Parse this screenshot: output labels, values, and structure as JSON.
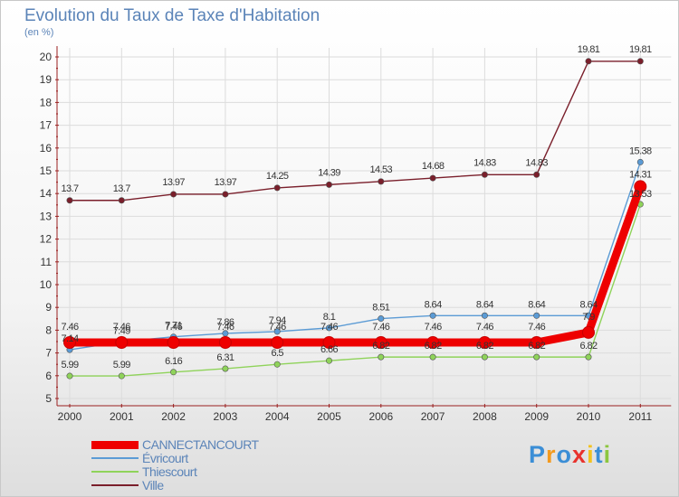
{
  "chart_data": {
    "type": "line",
    "title": "Evolution du Taux de Taxe d'Habitation",
    "ylabel": "(en %)",
    "xlabel": "",
    "x": [
      "2000",
      "2001",
      "2002",
      "2003",
      "2004",
      "2005",
      "2006",
      "2007",
      "2008",
      "2009",
      "2010",
      "2011"
    ],
    "ylim": [
      5,
      20
    ],
    "yticks": [
      "5",
      "6",
      "7",
      "8",
      "9",
      "10",
      "11",
      "12",
      "13",
      "14",
      "15",
      "16",
      "17",
      "18",
      "19",
      "20"
    ],
    "grid": true,
    "legend_position": "bottom-left",
    "series": [
      {
        "name": "CANNECTANCOURT",
        "color": "#ee0000",
        "values": [
          7.46,
          7.46,
          7.46,
          7.46,
          7.46,
          7.46,
          7.46,
          7.46,
          7.46,
          7.46,
          7.9,
          14.31
        ],
        "labels": [
          "7.46",
          "7.46",
          "7.46",
          "7.46",
          "7.46",
          "7.46",
          "7.46",
          "7.46",
          "7.46",
          "7.46",
          "7.9",
          "14.31"
        ]
      },
      {
        "name": "Évricourt",
        "color": "#5b9bd5",
        "values": [
          7.14,
          7.49,
          7.71,
          7.86,
          7.94,
          8.1,
          8.51,
          8.64,
          8.64,
          8.64,
          8.64,
          15.38
        ],
        "labels": [
          "7.14",
          "7.49",
          "7.71",
          "7.86",
          "7.94",
          "8.1",
          "8.51",
          "8.64",
          "8.64",
          "8.64",
          "8.64",
          "15.38"
        ]
      },
      {
        "name": "Thiescourt",
        "color": "#8fd35a",
        "values": [
          5.99,
          5.99,
          6.16,
          6.31,
          6.5,
          6.66,
          6.82,
          6.82,
          6.82,
          6.82,
          6.82,
          13.53
        ],
        "labels": [
          "5.99",
          "5.99",
          "6.16",
          "6.31",
          "6.5",
          "6.66",
          "6.82",
          "6.82",
          "6.82",
          "6.82",
          "6.82",
          "13.53"
        ]
      },
      {
        "name": "Ville",
        "color": "#7a1f2b",
        "values": [
          13.7,
          13.7,
          13.97,
          13.97,
          14.25,
          14.39,
          14.53,
          14.68,
          14.83,
          14.83,
          19.81,
          19.81
        ],
        "labels": [
          "13.7",
          "13.7",
          "13.97",
          "13.97",
          "14.25",
          "14.39",
          "14.53",
          "14.68",
          "14.83",
          "14.83",
          "19.81",
          "19.81"
        ]
      }
    ]
  },
  "legend": {
    "items": [
      {
        "label": "CANNECTANCOURT",
        "color": "#ee0000"
      },
      {
        "label": "Évricourt",
        "color": "#5b9bd5"
      },
      {
        "label": "Thiescourt",
        "color": "#8fd35a"
      },
      {
        "label": "Ville",
        "color": "#7a1f2b"
      }
    ]
  },
  "brand": {
    "letters": [
      "P",
      "r",
      "o",
      "x",
      "i",
      "t",
      "i"
    ],
    "colors": [
      "#3b8ed6",
      "#f39a1d",
      "#3b8ed6",
      "#e8322d",
      "#f3c21d",
      "#3b8ed6",
      "#8cc63f"
    ]
  }
}
